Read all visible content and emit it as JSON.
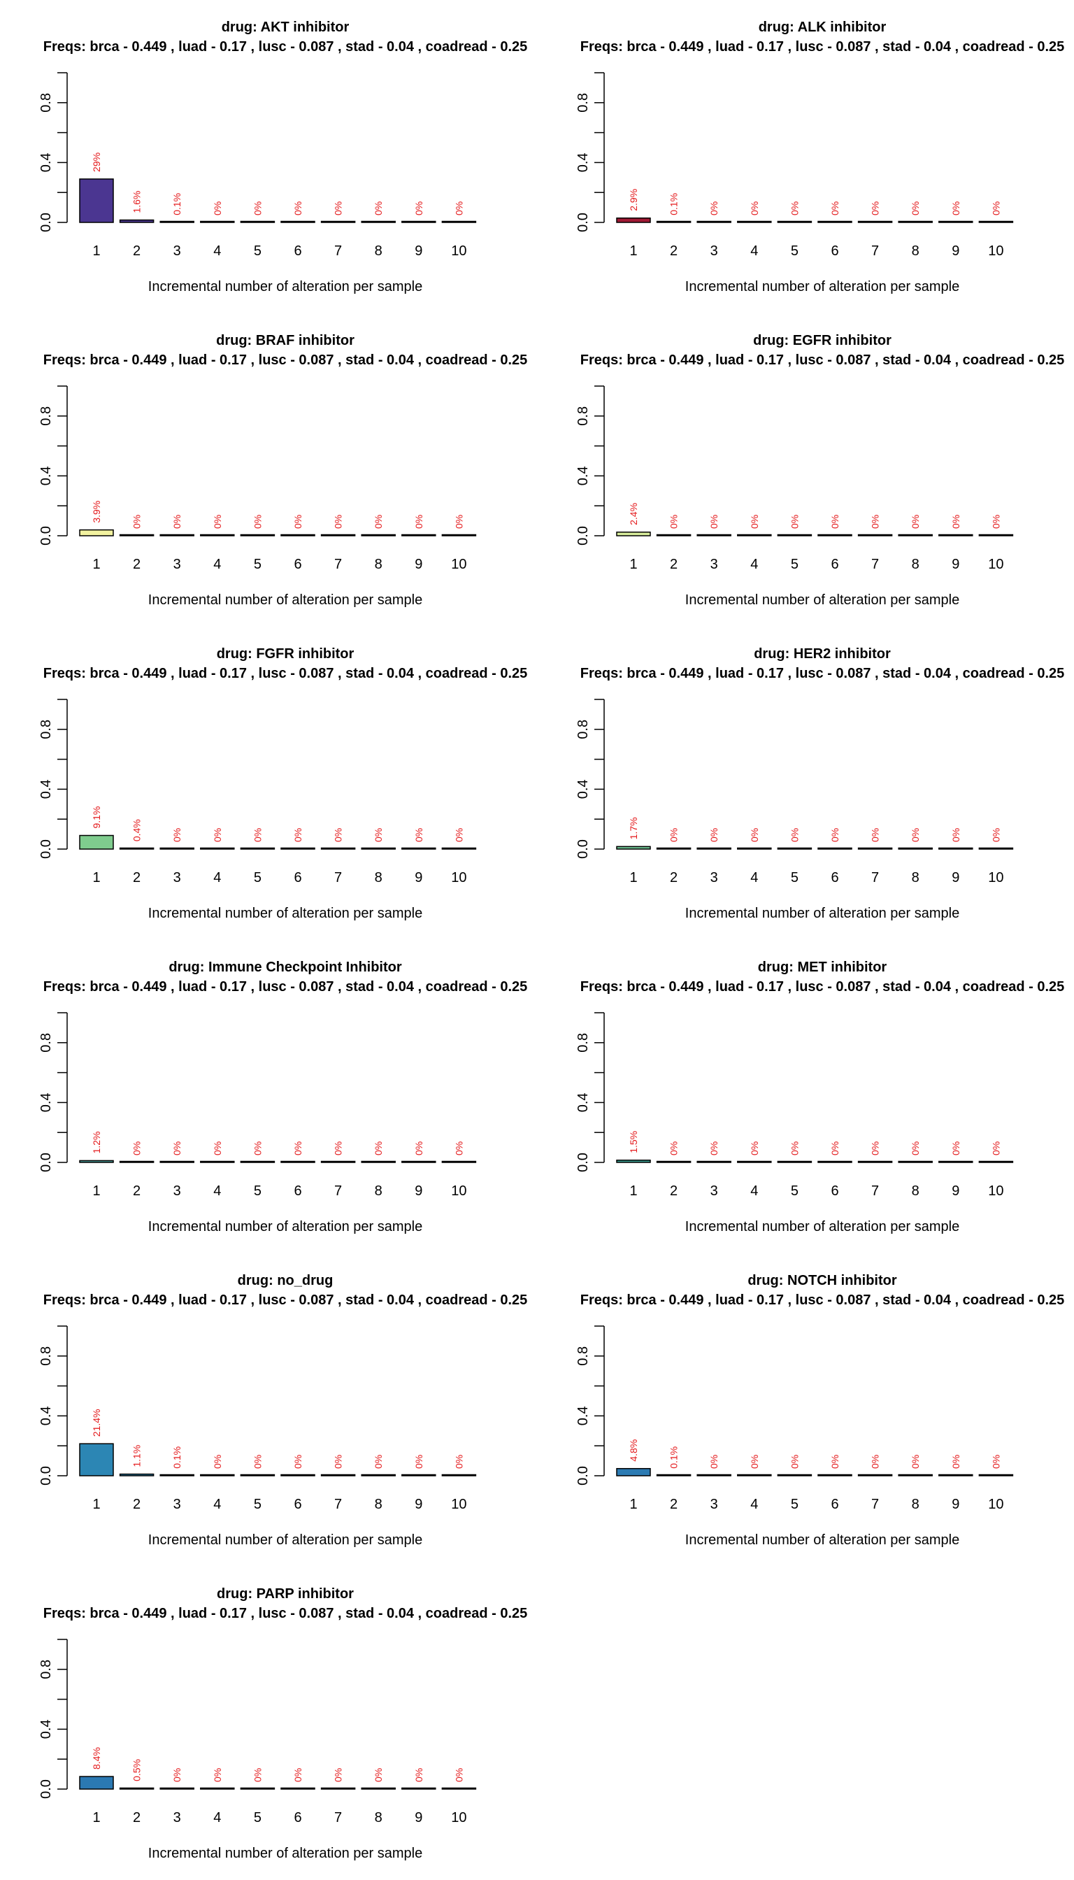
{
  "chart_data": [
    {
      "type": "bar",
      "title": "drug: AKT inhibitor",
      "subtitle": "Freqs: brca - 0.449 , luad - 0.17 , lusc - 0.087 , stad - 0.04 , coadread - 0.25",
      "xlabel": "Incremental number of alteration per sample",
      "ylabel": "",
      "categories": [
        "1",
        "2",
        "3",
        "4",
        "5",
        "6",
        "7",
        "8",
        "9",
        "10"
      ],
      "values": [
        0.29,
        0.016,
        0.001,
        0,
        0,
        0,
        0,
        0,
        0,
        0
      ],
      "data_labels": [
        "29%",
        "1.6%",
        "0.1%",
        "0%",
        "0%",
        "0%",
        "0%",
        "0%",
        "0%",
        "0%"
      ],
      "ylim": [
        0,
        1
      ],
      "yticks": [
        "0.0",
        "0.4",
        "0.8"
      ],
      "bar_color": "#4b3691"
    },
    {
      "type": "bar",
      "title": "drug: ALK inhibitor",
      "subtitle": "Freqs: brca - 0.449 , luad - 0.17 , lusc - 0.087 , stad - 0.04 , coadread - 0.25",
      "xlabel": "Incremental number of alteration per sample",
      "ylabel": "",
      "categories": [
        "1",
        "2",
        "3",
        "4",
        "5",
        "6",
        "7",
        "8",
        "9",
        "10"
      ],
      "values": [
        0.029,
        0.001,
        0,
        0,
        0,
        0,
        0,
        0,
        0,
        0
      ],
      "data_labels": [
        "2.9%",
        "0.1%",
        "0%",
        "0%",
        "0%",
        "0%",
        "0%",
        "0%",
        "0%",
        "0%"
      ],
      "ylim": [
        0,
        1
      ],
      "yticks": [
        "0.0",
        "0.4",
        "0.8"
      ],
      "bar_color": "#a01934"
    },
    {
      "type": "bar",
      "title": "drug: BRAF inhibitor",
      "subtitle": "Freqs: brca - 0.449 , luad - 0.17 , lusc - 0.087 , stad - 0.04 , coadread - 0.25",
      "xlabel": "Incremental number of alteration per sample",
      "ylabel": "",
      "categories": [
        "1",
        "2",
        "3",
        "4",
        "5",
        "6",
        "7",
        "8",
        "9",
        "10"
      ],
      "values": [
        0.039,
        0,
        0,
        0,
        0,
        0,
        0,
        0,
        0,
        0
      ],
      "data_labels": [
        "3.9%",
        "0%",
        "0%",
        "0%",
        "0%",
        "0%",
        "0%",
        "0%",
        "0%",
        "0%"
      ],
      "ylim": [
        0,
        1
      ],
      "yticks": [
        "0.0",
        "0.4",
        "0.8"
      ],
      "bar_color": "#f2f2a0"
    },
    {
      "type": "bar",
      "title": "drug: EGFR inhibitor",
      "subtitle": "Freqs: brca - 0.449 , luad - 0.17 , lusc - 0.087 , stad - 0.04 , coadread - 0.25",
      "xlabel": "Incremental number of alteration per sample",
      "ylabel": "",
      "categories": [
        "1",
        "2",
        "3",
        "4",
        "5",
        "6",
        "7",
        "8",
        "9",
        "10"
      ],
      "values": [
        0.024,
        0,
        0,
        0,
        0,
        0,
        0,
        0,
        0,
        0
      ],
      "data_labels": [
        "2.4%",
        "0%",
        "0%",
        "0%",
        "0%",
        "0%",
        "0%",
        "0%",
        "0%",
        "0%"
      ],
      "ylim": [
        0,
        1
      ],
      "yticks": [
        "0.0",
        "0.4",
        "0.8"
      ],
      "bar_color": "#d7ec9b"
    },
    {
      "type": "bar",
      "title": "drug: FGFR inhibitor",
      "subtitle": "Freqs: brca - 0.449 , luad - 0.17 , lusc - 0.087 , stad - 0.04 , coadread - 0.25",
      "xlabel": "Incremental number of alteration per sample",
      "ylabel": "",
      "categories": [
        "1",
        "2",
        "3",
        "4",
        "5",
        "6",
        "7",
        "8",
        "9",
        "10"
      ],
      "values": [
        0.091,
        0.004,
        0,
        0,
        0,
        0,
        0,
        0,
        0,
        0
      ],
      "data_labels": [
        "9.1%",
        "0.4%",
        "0%",
        "0%",
        "0%",
        "0%",
        "0%",
        "0%",
        "0%",
        "0%"
      ],
      "ylim": [
        0,
        1
      ],
      "yticks": [
        "0.0",
        "0.4",
        "0.8"
      ],
      "bar_color": "#7fcc8e"
    },
    {
      "type": "bar",
      "title": "drug: HER2 inhibitor",
      "subtitle": "Freqs: brca - 0.449 , luad - 0.17 , lusc - 0.087 , stad - 0.04 , coadread - 0.25",
      "xlabel": "Incremental number of alteration per sample",
      "ylabel": "",
      "categories": [
        "1",
        "2",
        "3",
        "4",
        "5",
        "6",
        "7",
        "8",
        "9",
        "10"
      ],
      "values": [
        0.017,
        0,
        0,
        0,
        0,
        0,
        0,
        0,
        0,
        0
      ],
      "data_labels": [
        "1.7%",
        "0%",
        "0%",
        "0%",
        "0%",
        "0%",
        "0%",
        "0%",
        "0%",
        "0%"
      ],
      "ylim": [
        0,
        1
      ],
      "yticks": [
        "0.0",
        "0.4",
        "0.8"
      ],
      "bar_color": "#6cbf90"
    },
    {
      "type": "bar",
      "title": "drug: Immune Checkpoint Inhibitor",
      "subtitle": "Freqs: brca - 0.449 , luad - 0.17 , lusc - 0.087 , stad - 0.04 , coadread - 0.25",
      "xlabel": "Incremental number of alteration per sample",
      "ylabel": "",
      "categories": [
        "1",
        "2",
        "3",
        "4",
        "5",
        "6",
        "7",
        "8",
        "9",
        "10"
      ],
      "values": [
        0.012,
        0,
        0,
        0,
        0,
        0,
        0,
        0,
        0,
        0
      ],
      "data_labels": [
        "1.2%",
        "0%",
        "0%",
        "0%",
        "0%",
        "0%",
        "0%",
        "0%",
        "0%",
        "0%"
      ],
      "ylim": [
        0,
        1
      ],
      "yticks": [
        "0.0",
        "0.4",
        "0.8"
      ],
      "bar_color": "#4ba3a0"
    },
    {
      "type": "bar",
      "title": "drug: MET inhibitor",
      "subtitle": "Freqs: brca - 0.449 , luad - 0.17 , lusc - 0.087 , stad - 0.04 , coadread - 0.25",
      "xlabel": "Incremental number of alteration per sample",
      "ylabel": "",
      "categories": [
        "1",
        "2",
        "3",
        "4",
        "5",
        "6",
        "7",
        "8",
        "9",
        "10"
      ],
      "values": [
        0.015,
        0,
        0,
        0,
        0,
        0,
        0,
        0,
        0,
        0
      ],
      "data_labels": [
        "1.5%",
        "0%",
        "0%",
        "0%",
        "0%",
        "0%",
        "0%",
        "0%",
        "0%",
        "0%"
      ],
      "ylim": [
        0,
        1
      ],
      "yticks": [
        "0.0",
        "0.4",
        "0.8"
      ],
      "bar_color": "#3a9c8f"
    },
    {
      "type": "bar",
      "title": "drug: no_drug",
      "subtitle": "Freqs: brca - 0.449 , luad - 0.17 , lusc - 0.087 , stad - 0.04 , coadread - 0.25",
      "xlabel": "Incremental number of alteration per sample",
      "ylabel": "",
      "categories": [
        "1",
        "2",
        "3",
        "4",
        "5",
        "6",
        "7",
        "8",
        "9",
        "10"
      ],
      "values": [
        0.214,
        0.011,
        0.001,
        0,
        0,
        0,
        0,
        0,
        0,
        0
      ],
      "data_labels": [
        "21.4%",
        "1.1%",
        "0.1%",
        "0%",
        "0%",
        "0%",
        "0%",
        "0%",
        "0%",
        "0%"
      ],
      "ylim": [
        0,
        1
      ],
      "yticks": [
        "0.0",
        "0.4",
        "0.8"
      ],
      "bar_color": "#2c86b4"
    },
    {
      "type": "bar",
      "title": "drug: NOTCH inhibitor",
      "subtitle": "Freqs: brca - 0.449 , luad - 0.17 , lusc - 0.087 , stad - 0.04 , coadread - 0.25",
      "xlabel": "Incremental number of alteration per sample",
      "ylabel": "",
      "categories": [
        "1",
        "2",
        "3",
        "4",
        "5",
        "6",
        "7",
        "8",
        "9",
        "10"
      ],
      "values": [
        0.048,
        0.001,
        0,
        0,
        0,
        0,
        0,
        0,
        0,
        0
      ],
      "data_labels": [
        "4.8%",
        "0.1%",
        "0%",
        "0%",
        "0%",
        "0%",
        "0%",
        "0%",
        "0%",
        "0%"
      ],
      "ylim": [
        0,
        1
      ],
      "yticks": [
        "0.0",
        "0.4",
        "0.8"
      ],
      "bar_color": "#2c7bb3"
    },
    {
      "type": "bar",
      "title": "drug: PARP inhibitor",
      "subtitle": "Freqs: brca - 0.449 , luad - 0.17 , lusc - 0.087 , stad - 0.04 , coadread - 0.25",
      "xlabel": "Incremental number of alteration per sample",
      "ylabel": "",
      "categories": [
        "1",
        "2",
        "3",
        "4",
        "5",
        "6",
        "7",
        "8",
        "9",
        "10"
      ],
      "values": [
        0.084,
        0.005,
        0,
        0,
        0,
        0,
        0,
        0,
        0,
        0
      ],
      "data_labels": [
        "8.4%",
        "0.5%",
        "0%",
        "0%",
        "0%",
        "0%",
        "0%",
        "0%",
        "0%",
        "0%"
      ],
      "ylim": [
        0,
        1
      ],
      "yticks": [
        "0.0",
        "0.4",
        "0.8"
      ],
      "bar_color": "#2b79b2"
    }
  ]
}
